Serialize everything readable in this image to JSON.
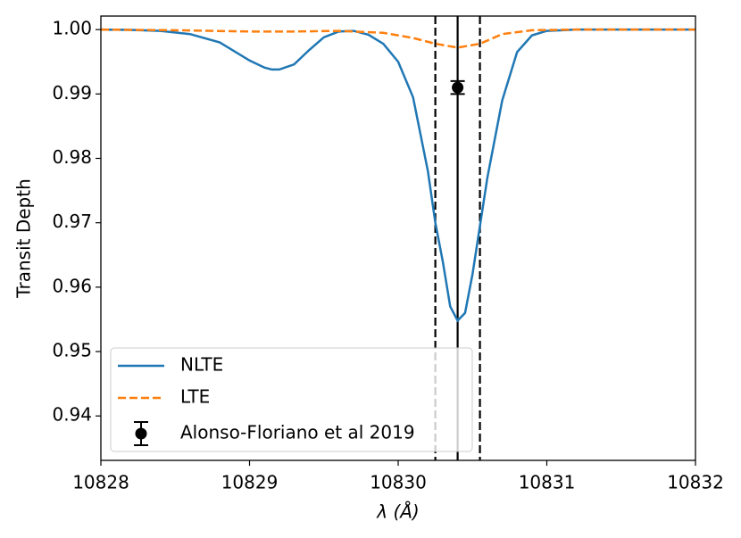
{
  "chart_data": {
    "type": "line",
    "xlabel": "λ (Å)",
    "ylabel": "Transit Depth",
    "xlim": [
      10828,
      10832
    ],
    "ylim": [
      0.9331,
      1.0021
    ],
    "xticks": [
      10828,
      10829,
      10830,
      10831,
      10832
    ],
    "yticks": [
      0.94,
      0.95,
      0.96,
      0.97,
      0.98,
      0.99,
      {
        "value": 1,
        "label": "1.00"
      }
    ],
    "legend": "lower left",
    "series": [
      {
        "name": "NLTE",
        "color": "#1f77b4",
        "style": "solid",
        "x": [
          10828,
          10828.2,
          10828.4,
          10828.6,
          10828.8,
          10829,
          10829.1,
          10829.15,
          10829.2,
          10829.3,
          10829.4,
          10829.5,
          10829.6,
          10829.7,
          10829.8,
          10829.9,
          10830,
          10830.1,
          10830.2,
          10830.25,
          10830.3,
          10830.35,
          10830.4,
          10830.45,
          10830.5,
          10830.6,
          10830.7,
          10830.8,
          10830.9,
          10831,
          10831.2,
          10832
        ],
        "values": [
          1.0,
          0.99995,
          0.9998,
          0.9993,
          0.998,
          0.9952,
          0.9941,
          0.9938,
          0.9938,
          0.9946,
          0.9968,
          0.9988,
          0.9997,
          0.9998,
          0.9992,
          0.9978,
          0.995,
          0.9895,
          0.978,
          0.97,
          0.964,
          0.957,
          0.9548,
          0.956,
          0.962,
          0.977,
          0.989,
          0.9965,
          0.9991,
          0.9998,
          1.0,
          1.0
        ]
      },
      {
        "name": "LTE",
        "color": "#ff7f0e",
        "style": "dashed",
        "x": [
          10828,
          10828.5,
          10829,
          10829.3,
          10829.6,
          10829.9,
          10830.1,
          10830.25,
          10830.4,
          10830.55,
          10830.7,
          10830.9,
          10831.2,
          10832
        ],
        "values": [
          1.0,
          0.9999,
          0.9997,
          0.9997,
          0.9998,
          0.9995,
          0.9987,
          0.9978,
          0.9972,
          0.9978,
          0.9993,
          0.9999,
          1.0,
          1.0
        ]
      },
      {
        "name": "Alonso-Floriano et al 2019",
        "color": "#000000",
        "style": "errorbar",
        "x": [
          10830.4
        ],
        "values": [
          0.991
        ],
        "errors": [
          0.001
        ]
      }
    ],
    "vlines": [
      {
        "x": 10830.25,
        "style": "dashed",
        "color": "#000000"
      },
      {
        "x": 10830.4,
        "style": "solid",
        "color": "#000000"
      },
      {
        "x": 10830.55,
        "style": "dashed",
        "color": "#000000"
      }
    ]
  }
}
